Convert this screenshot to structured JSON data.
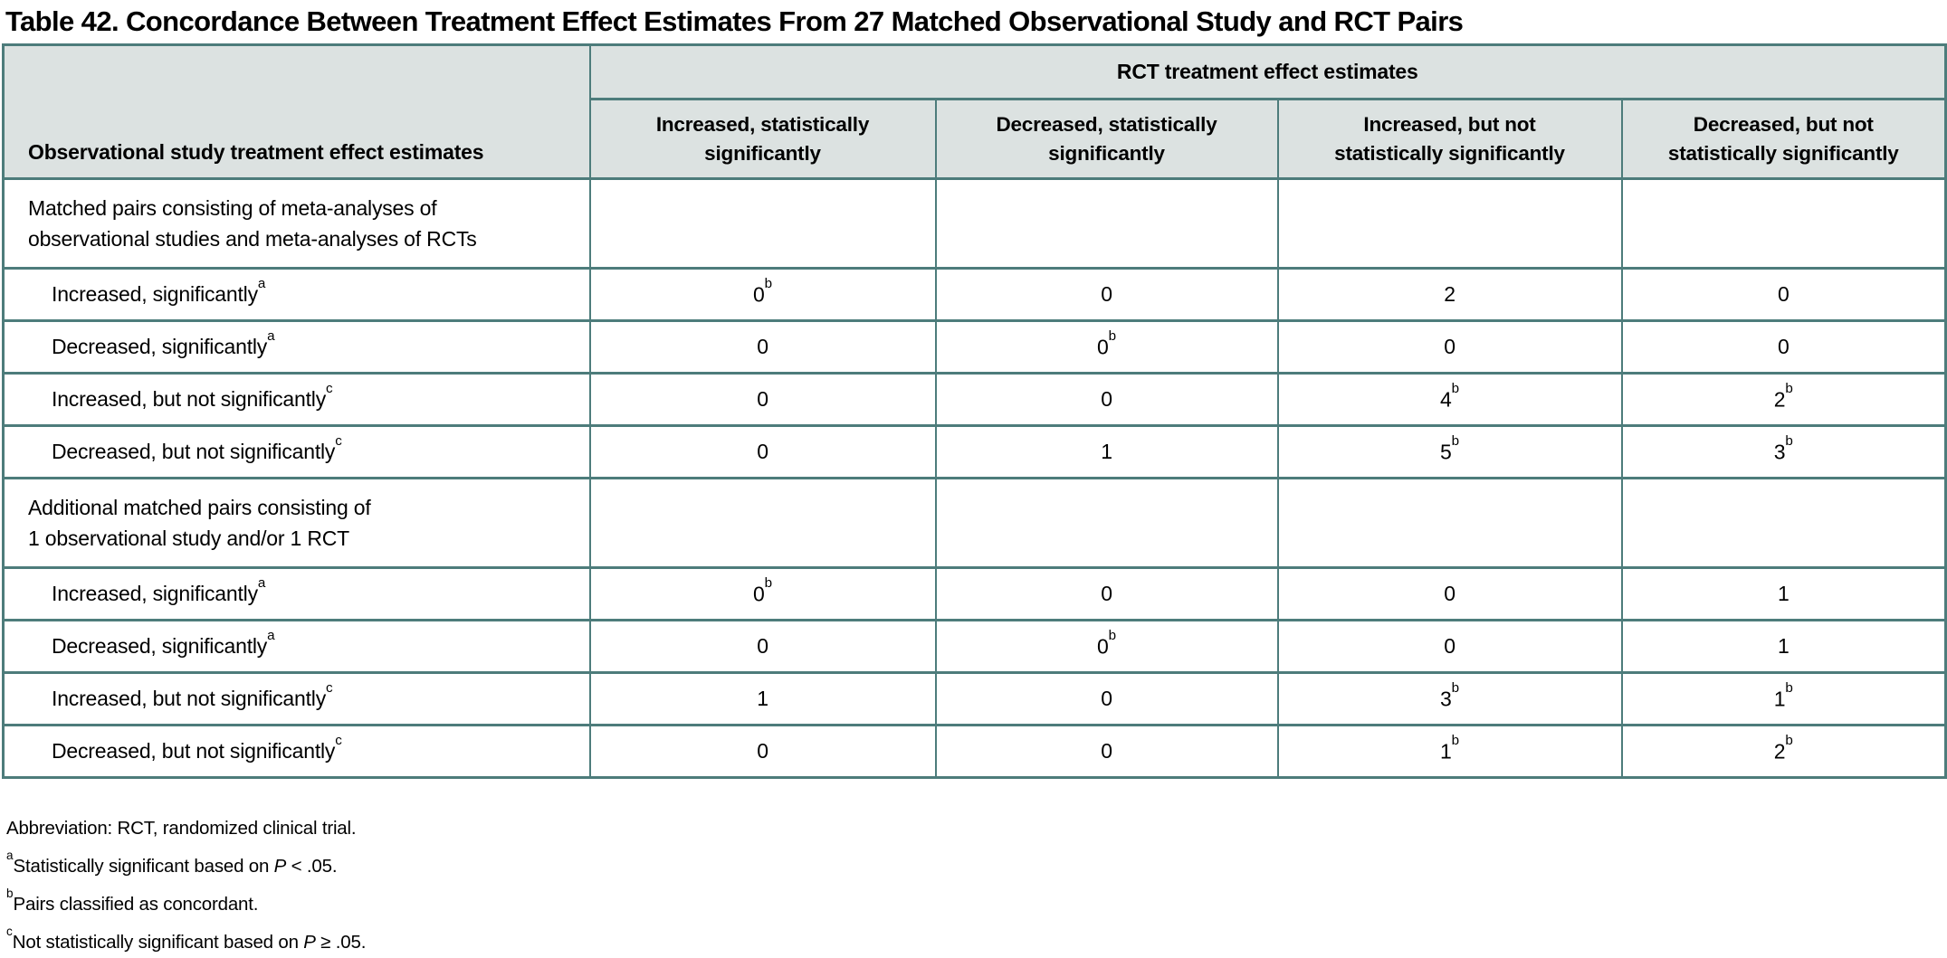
{
  "title": "Table 42. Concordance Between Treatment Effect Estimates From 27 Matched Observational Study and RCT Pairs",
  "colors": {
    "border_teal": "#4d7c7b",
    "header_background": "#dce2e1",
    "text": "#000000",
    "row_background": "#ffffff"
  },
  "table": {
    "corner_header": "Observational study treatment effect estimates",
    "span_header": "RCT treatment effect estimates",
    "column_headers": [
      [
        "Increased, statistically",
        "significantly"
      ],
      [
        "Decreased, statistically",
        "significantly"
      ],
      [
        "Increased, but not",
        "statistically significantly"
      ],
      [
        "Decreased, but not",
        "statistically significantly"
      ]
    ],
    "rows": [
      {
        "type": "group",
        "label_lines": [
          "Matched pairs consisting of meta-analyses of",
          "observational studies and meta-analyses of RCTs"
        ],
        "cells": [
          {
            "v": "",
            "sup": ""
          },
          {
            "v": "",
            "sup": ""
          },
          {
            "v": "",
            "sup": ""
          },
          {
            "v": "",
            "sup": ""
          }
        ]
      },
      {
        "type": "data",
        "label": "Increased, significantly",
        "label_sup": "a",
        "cells": [
          {
            "v": "0",
            "sup": "b"
          },
          {
            "v": "0",
            "sup": ""
          },
          {
            "v": "2",
            "sup": ""
          },
          {
            "v": "0",
            "sup": ""
          }
        ]
      },
      {
        "type": "data",
        "label": "Decreased, significantly",
        "label_sup": "a",
        "cells": [
          {
            "v": "0",
            "sup": ""
          },
          {
            "v": "0",
            "sup": "b"
          },
          {
            "v": "0",
            "sup": ""
          },
          {
            "v": "0",
            "sup": ""
          }
        ]
      },
      {
        "type": "data",
        "label": "Increased, but not significantly",
        "label_sup": "c",
        "cells": [
          {
            "v": "0",
            "sup": ""
          },
          {
            "v": "0",
            "sup": ""
          },
          {
            "v": "4",
            "sup": "b"
          },
          {
            "v": "2",
            "sup": "b"
          }
        ]
      },
      {
        "type": "data",
        "label": "Decreased, but not significantly",
        "label_sup": "c",
        "cells": [
          {
            "v": "0",
            "sup": ""
          },
          {
            "v": "1",
            "sup": ""
          },
          {
            "v": "5",
            "sup": "b"
          },
          {
            "v": "3",
            "sup": "b"
          }
        ]
      },
      {
        "type": "group",
        "label_lines": [
          "Additional matched pairs consisting of",
          "1 observational study and/or 1 RCT"
        ],
        "cells": [
          {
            "v": "",
            "sup": ""
          },
          {
            "v": "",
            "sup": ""
          },
          {
            "v": "",
            "sup": ""
          },
          {
            "v": "",
            "sup": ""
          }
        ]
      },
      {
        "type": "data",
        "label": "Increased, significantly",
        "label_sup": "a",
        "cells": [
          {
            "v": "0",
            "sup": "b"
          },
          {
            "v": "0",
            "sup": ""
          },
          {
            "v": "0",
            "sup": ""
          },
          {
            "v": "1",
            "sup": ""
          }
        ]
      },
      {
        "type": "data",
        "label": "Decreased, significantly",
        "label_sup": "a",
        "cells": [
          {
            "v": "0",
            "sup": ""
          },
          {
            "v": "0",
            "sup": "b"
          },
          {
            "v": "0",
            "sup": ""
          },
          {
            "v": "1",
            "sup": ""
          }
        ]
      },
      {
        "type": "data",
        "label": "Increased, but not significantly",
        "label_sup": "c",
        "cells": [
          {
            "v": "1",
            "sup": ""
          },
          {
            "v": "0",
            "sup": ""
          },
          {
            "v": "3",
            "sup": "b"
          },
          {
            "v": "1",
            "sup": "b"
          }
        ]
      },
      {
        "type": "data",
        "label": "Decreased, but not significantly",
        "label_sup": "c",
        "cells": [
          {
            "v": "0",
            "sup": ""
          },
          {
            "v": "0",
            "sup": ""
          },
          {
            "v": "1",
            "sup": "b"
          },
          {
            "v": "2",
            "sup": "b"
          }
        ]
      }
    ]
  },
  "footnotes": [
    {
      "sup": "",
      "parts": [
        {
          "t": "Abbreviation: RCT, randomized clinical trial.",
          "i": false
        }
      ]
    },
    {
      "sup": "a",
      "parts": [
        {
          "t": "Statistically significant based on ",
          "i": false
        },
        {
          "t": "P",
          "i": true
        },
        {
          "t": " < .05.",
          "i": false
        }
      ]
    },
    {
      "sup": "b",
      "parts": [
        {
          "t": "Pairs classified as concordant.",
          "i": false
        }
      ]
    },
    {
      "sup": "c",
      "parts": [
        {
          "t": "Not statistically significant based on ",
          "i": false
        },
        {
          "t": "P",
          "i": true
        },
        {
          "t": " ≥ .05.",
          "i": false
        }
      ]
    }
  ]
}
